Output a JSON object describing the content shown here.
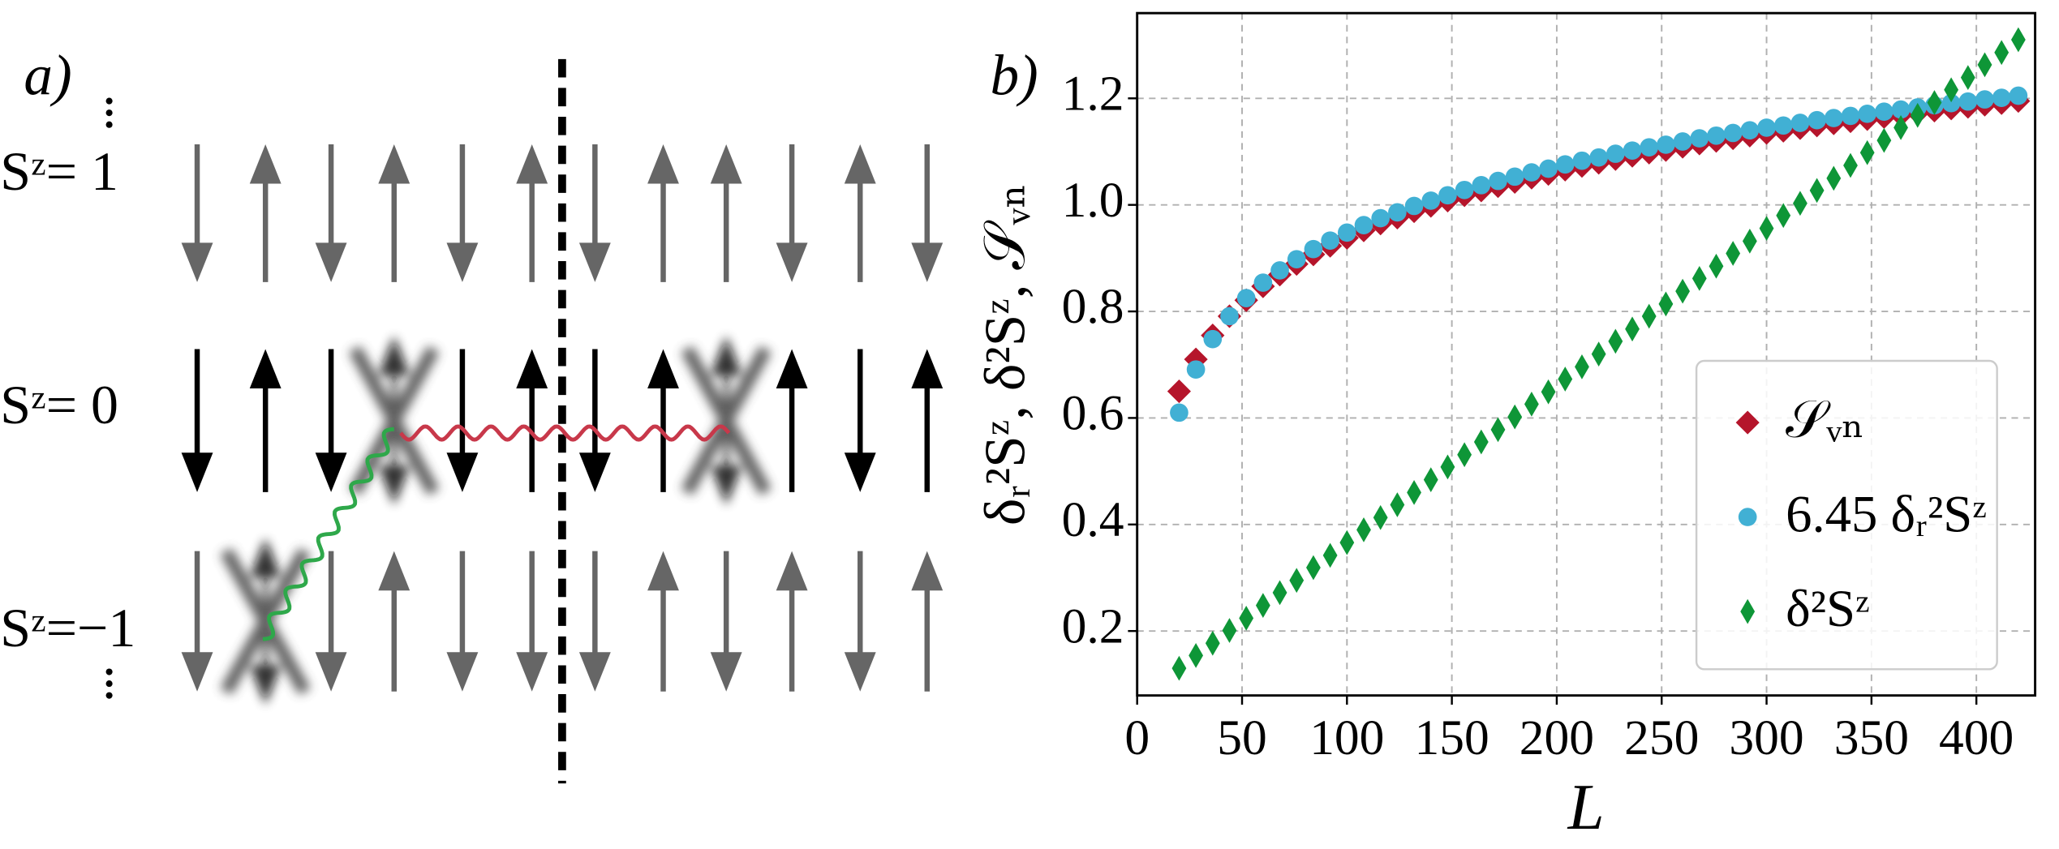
{
  "panel_a": {
    "label": "a)",
    "rows": [
      "Sᶻ= 1",
      "Sᶻ= 0",
      "Sᶻ=−1"
    ]
  },
  "chart_data": {
    "type": "scatter",
    "panel_label": "b)",
    "xlabel": "L",
    "ylabel": "δᵣ²Sᶻ, δ²Sᶻ, 𝒮ᵥₙ",
    "xlim": [
      0,
      428
    ],
    "ylim": [
      0.079,
      1.36
    ],
    "xticks": [
      0,
      50,
      100,
      150,
      200,
      250,
      300,
      350,
      400
    ],
    "yticks": [
      0.2,
      0.4,
      0.6,
      0.8,
      {
        "value": 1,
        "label": "1.0"
      },
      1.2
    ],
    "grid": true,
    "legend": "lower right",
    "x": [
      20,
      28,
      36,
      44,
      52,
      60,
      68,
      76,
      84,
      92,
      100,
      108,
      116,
      124,
      132,
      140,
      148,
      156,
      164,
      172,
      180,
      188,
      196,
      204,
      212,
      220,
      228,
      236,
      244,
      252,
      260,
      268,
      276,
      284,
      292,
      300,
      308,
      316,
      324,
      332,
      340,
      348,
      356,
      364,
      372,
      380,
      388,
      396,
      404,
      412,
      420
    ],
    "series": [
      {
        "name": "𝒮ᵥₙ",
        "color": "#b5152b",
        "marker": "D",
        "values": [
          0.65,
          0.71,
          0.755,
          0.791,
          0.821,
          0.847,
          0.869,
          0.889,
          0.907,
          0.923,
          0.938,
          0.952,
          0.965,
          0.976,
          0.988,
          0.998,
          1.008,
          1.018,
          1.027,
          1.035,
          1.043,
          1.051,
          1.058,
          1.066,
          1.073,
          1.079,
          1.086,
          1.092,
          1.098,
          1.103,
          1.109,
          1.115,
          1.12,
          1.125,
          1.13,
          1.135,
          1.139,
          1.144,
          1.149,
          1.153,
          1.157,
          1.161,
          1.165,
          1.169,
          1.173,
          1.177,
          1.181,
          1.184,
          1.188,
          1.191,
          1.195
        ]
      },
      {
        "name": "6.45 δᵣ²Sᶻ",
        "color": "#41b0d4",
        "marker": "o",
        "values": [
          0.61,
          0.691,
          0.748,
          0.791,
          0.825,
          0.854,
          0.877,
          0.898,
          0.917,
          0.933,
          0.948,
          0.962,
          0.975,
          0.986,
          0.998,
          1.008,
          1.018,
          1.028,
          1.037,
          1.045,
          1.053,
          1.061,
          1.068,
          1.076,
          1.083,
          1.089,
          1.096,
          1.102,
          1.108,
          1.113,
          1.119,
          1.125,
          1.13,
          1.135,
          1.14,
          1.145,
          1.149,
          1.154,
          1.159,
          1.163,
          1.167,
          1.171,
          1.175,
          1.179,
          1.183,
          1.187,
          1.191,
          1.194,
          1.198,
          1.201,
          1.205
        ]
      },
      {
        "name": "δ²Sᶻ",
        "color": "#0e9637",
        "marker": "d",
        "values": [
          0.13,
          0.154,
          0.177,
          0.201,
          0.224,
          0.248,
          0.272,
          0.295,
          0.319,
          0.342,
          0.366,
          0.39,
          0.413,
          0.437,
          0.46,
          0.484,
          0.508,
          0.531,
          0.555,
          0.578,
          0.602,
          0.626,
          0.649,
          0.673,
          0.696,
          0.72,
          0.744,
          0.767,
          0.791,
          0.814,
          0.838,
          0.862,
          0.885,
          0.909,
          0.932,
          0.956,
          0.98,
          1.003,
          1.027,
          1.05,
          1.074,
          1.098,
          1.121,
          1.145,
          1.168,
          1.192,
          1.216,
          1.239,
          1.263,
          1.286,
          1.31
        ]
      }
    ]
  }
}
